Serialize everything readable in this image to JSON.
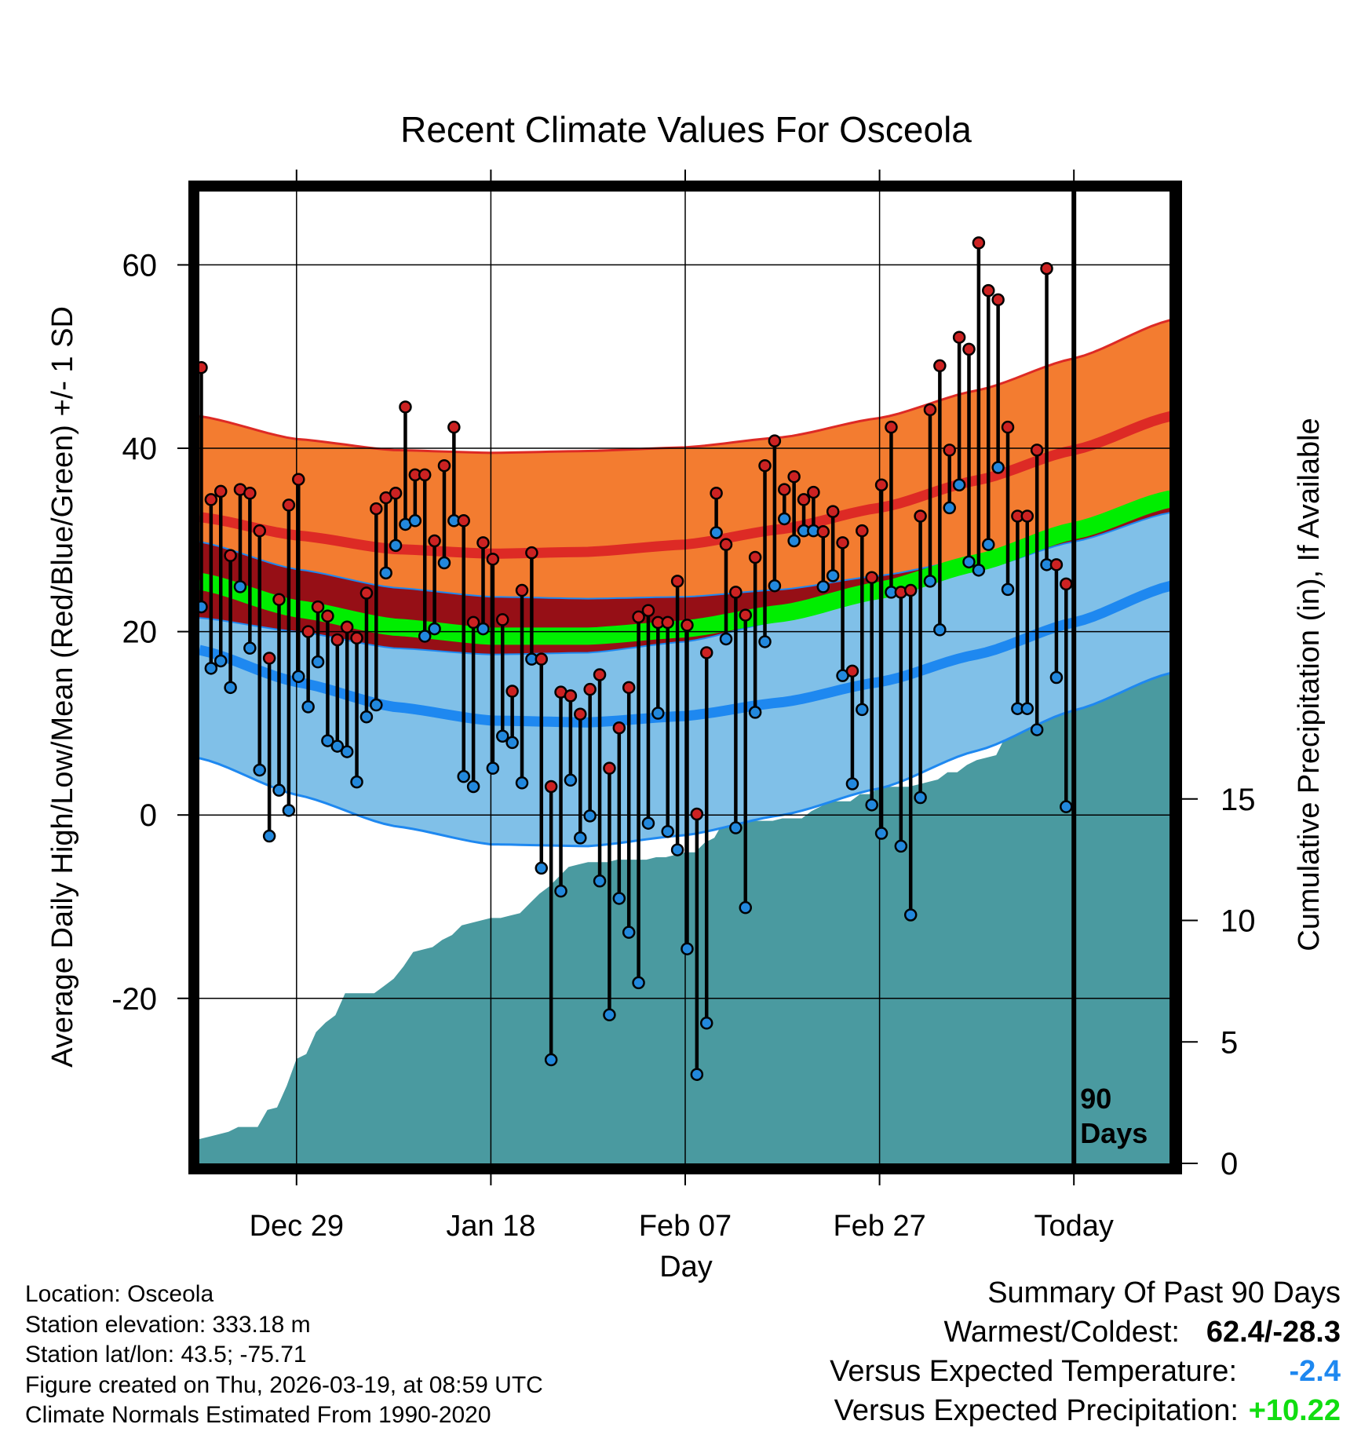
{
  "chart_data": {
    "type": "line",
    "title": "Recent Climate Values For Osceola",
    "xlabel": "Day",
    "ylabel": "Average Daily High/Low/Mean (Red/Blue/Green) +/- 1 SD",
    "y2label": "Cumulative Precipitation (in), If Available",
    "ylim": [
      -38,
      68
    ],
    "y2lim": [
      0,
      40
    ],
    "xlim": [
      0,
      100
    ],
    "today_day": 90,
    "today_label": [
      "90",
      "Days"
    ],
    "x_ticks": [
      {
        "day": 10,
        "label": "Dec 29"
      },
      {
        "day": 30,
        "label": "Jan 18"
      },
      {
        "day": 50,
        "label": "Feb 07"
      },
      {
        "day": 70,
        "label": "Feb 27"
      },
      {
        "day": 90,
        "label": "Today"
      }
    ],
    "y_ticks": [
      -20,
      0,
      20,
      40,
      60
    ],
    "y2_ticks": [
      0,
      5,
      10,
      15
    ],
    "normals": {
      "days": [
        0,
        10,
        20,
        30,
        40,
        50,
        60,
        70,
        80,
        90,
        100
      ],
      "high_mean": [
        32.5,
        30.5,
        29.0,
        28.5,
        28.7,
        29.5,
        31.2,
        33.5,
        36.5,
        39.8,
        43.5
      ],
      "high_sd": [
        11.0,
        10.5,
        10.8,
        11.0,
        11.0,
        10.6,
        10.0,
        9.8,
        9.8,
        10.0,
        10.5
      ],
      "low_mean": [
        18.0,
        14.5,
        11.8,
        10.3,
        10.1,
        10.8,
        12.3,
        14.5,
        17.5,
        21.0,
        25.0
      ],
      "low_sd": [
        11.8,
        12.3,
        13.0,
        13.5,
        13.5,
        13.0,
        12.3,
        11.6,
        10.5,
        9.6,
        9.5
      ],
      "mean_mean": [
        25.5,
        22.5,
        20.5,
        19.5,
        19.5,
        20.3,
        22.0,
        24.5,
        27.5,
        31.0,
        34.5
      ]
    },
    "series": [
      {
        "name": "High",
        "color": "#cc2222",
        "values": [
          48.8,
          34.4,
          35.3,
          28.3,
          35.5,
          35.1,
          31.0,
          17.1,
          23.5,
          33.8,
          36.6,
          20.0,
          22.7,
          21.7,
          19.1,
          20.5,
          19.3,
          24.2,
          33.4,
          34.6,
          35.1,
          44.5,
          37.1,
          37.1,
          29.9,
          38.1,
          42.3,
          32.1,
          21.0,
          29.7,
          27.9,
          21.3,
          13.5,
          24.5,
          28.6,
          17.0,
          3.1,
          13.4,
          13.0,
          11.0,
          13.7,
          15.3,
          5.1,
          9.5,
          13.9,
          21.6,
          22.3,
          21.0,
          21.0,
          25.5,
          20.7,
          0.1,
          17.7,
          35.1,
          29.5,
          24.3,
          21.8,
          28.1,
          38.1,
          40.8,
          35.5,
          36.9,
          34.4,
          35.2,
          30.9,
          33.1,
          29.7,
          15.7,
          31.0,
          25.9,
          36.0,
          42.3,
          24.3,
          24.5,
          32.6,
          44.2,
          49.0,
          39.8,
          52.1,
          50.8,
          62.4,
          57.2,
          56.2,
          42.3,
          32.6,
          32.6,
          39.8,
          59.6,
          27.3,
          25.2
        ]
      },
      {
        "name": "Low",
        "color": "#2288dd",
        "values": [
          22.7,
          16.0,
          16.8,
          13.9,
          24.9,
          18.2,
          4.9,
          -2.3,
          2.7,
          0.5,
          15.1,
          11.8,
          16.7,
          8.1,
          7.5,
          6.9,
          3.6,
          10.7,
          12.0,
          26.4,
          29.4,
          31.7,
          32.1,
          19.5,
          20.3,
          27.5,
          32.1,
          4.2,
          3.1,
          20.3,
          5.1,
          8.6,
          7.9,
          3.5,
          17.0,
          -5.8,
          -26.7,
          -8.3,
          3.8,
          -2.5,
          -0.1,
          -7.2,
          -21.8,
          -9.1,
          -12.8,
          -18.3,
          -0.9,
          11.1,
          -1.8,
          -3.8,
          -14.6,
          -28.3,
          -22.7,
          30.8,
          19.2,
          -1.4,
          -10.1,
          11.2,
          18.9,
          25.0,
          32.3,
          29.9,
          31.0,
          31.0,
          24.9,
          26.1,
          15.2,
          3.4,
          11.5,
          1.1,
          -2.0,
          24.3,
          -3.4,
          -10.9,
          1.9,
          25.5,
          20.2,
          33.5,
          36.0,
          27.6,
          26.7,
          29.5,
          37.9,
          24.6,
          11.6,
          11.6,
          9.3,
          27.3,
          15.0,
          0.9
        ]
      }
    ],
    "precip_cumulative": [
      [
        0,
        1.0
      ],
      [
        1,
        1.1
      ],
      [
        2,
        1.2
      ],
      [
        3,
        1.3
      ],
      [
        4,
        1.5
      ],
      [
        5,
        1.5
      ],
      [
        6,
        1.5
      ],
      [
        7,
        2.2
      ],
      [
        8,
        2.3
      ],
      [
        9,
        3.2
      ],
      [
        10,
        4.3
      ],
      [
        11,
        4.5
      ],
      [
        12,
        5.4
      ],
      [
        13,
        5.8
      ],
      [
        14,
        6.1
      ],
      [
        15,
        7.0
      ],
      [
        16,
        7.0
      ],
      [
        17,
        7.0
      ],
      [
        18,
        7.0
      ],
      [
        19,
        7.3
      ],
      [
        20,
        7.6
      ],
      [
        21,
        8.1
      ],
      [
        22,
        8.7
      ],
      [
        23,
        8.8
      ],
      [
        24,
        8.9
      ],
      [
        25,
        9.2
      ],
      [
        26,
        9.4
      ],
      [
        27,
        9.8
      ],
      [
        28,
        9.9
      ],
      [
        29,
        10.0
      ],
      [
        30,
        10.1
      ],
      [
        31,
        10.1
      ],
      [
        32,
        10.2
      ],
      [
        33,
        10.3
      ],
      [
        34,
        10.7
      ],
      [
        35,
        11.1
      ],
      [
        36,
        11.4
      ],
      [
        37,
        11.8
      ],
      [
        38,
        12.2
      ],
      [
        39,
        12.3
      ],
      [
        40,
        12.4
      ],
      [
        41,
        12.4
      ],
      [
        42,
        12.4
      ],
      [
        43,
        12.5
      ],
      [
        44,
        12.5
      ],
      [
        45,
        12.5
      ],
      [
        46,
        12.5
      ],
      [
        47,
        12.6
      ],
      [
        48,
        12.6
      ],
      [
        49,
        12.7
      ],
      [
        50,
        12.8
      ],
      [
        51,
        12.8
      ],
      [
        52,
        13.2
      ],
      [
        53,
        13.4
      ],
      [
        54,
        14.1
      ],
      [
        55,
        14.1
      ],
      [
        56,
        14.1
      ],
      [
        57,
        14.1
      ],
      [
        58,
        14.1
      ],
      [
        59,
        14.1
      ],
      [
        60,
        14.2
      ],
      [
        61,
        14.2
      ],
      [
        62,
        14.2
      ],
      [
        63,
        14.5
      ],
      [
        64,
        14.7
      ],
      [
        65,
        14.9
      ],
      [
        66,
        14.9
      ],
      [
        67,
        14.9
      ],
      [
        68,
        15.2
      ],
      [
        69,
        15.2
      ],
      [
        70,
        15.5
      ],
      [
        71,
        15.5
      ],
      [
        72,
        15.5
      ],
      [
        73,
        15.5
      ],
      [
        74,
        15.6
      ],
      [
        75,
        15.7
      ],
      [
        76,
        15.8
      ],
      [
        77,
        16.1
      ],
      [
        78,
        16.1
      ],
      [
        79,
        16.4
      ],
      [
        80,
        16.6
      ],
      [
        81,
        16.7
      ],
      [
        82,
        16.8
      ],
      [
        83,
        17.6
      ],
      [
        84,
        18.1
      ],
      [
        85,
        18.7
      ],
      [
        86,
        19.2
      ],
      [
        87,
        19.4
      ],
      [
        88,
        20.1
      ],
      [
        89,
        20.3
      ],
      [
        90,
        20.3
      ],
      [
        100,
        20.3
      ]
    ],
    "colors": {
      "high_band": "#f37c30",
      "high_line": "#dd2a25",
      "mid_band": "#960f16",
      "low_band": "#80c0e8",
      "low_line": "#1e88f0",
      "mean_band": "#00ee00",
      "precip": "#4a9aa0",
      "frame": "#000000"
    }
  },
  "footer": {
    "location": "Location: Osceola",
    "elevation": "Station elevation: 333.18 m",
    "latlon": "Station lat/lon: 43.5; -75.71",
    "created": "Figure created on Thu, 2026-03-19, at 08:59 UTC",
    "normals": "Climate Normals Estimated From 1990-2020"
  },
  "summary": {
    "title": "Summary Of Past 90 Days",
    "warm_cold_label": "Warmest/Coldest:",
    "warm_cold_value": "62.4/-28.3",
    "temp_label": "Versus Expected Temperature:",
    "temp_value": "-2.4",
    "temp_color": "#1e88f0",
    "precip_label": "Versus Expected Precipitation:",
    "precip_value": "+10.22",
    "precip_color": "#11dd11"
  }
}
